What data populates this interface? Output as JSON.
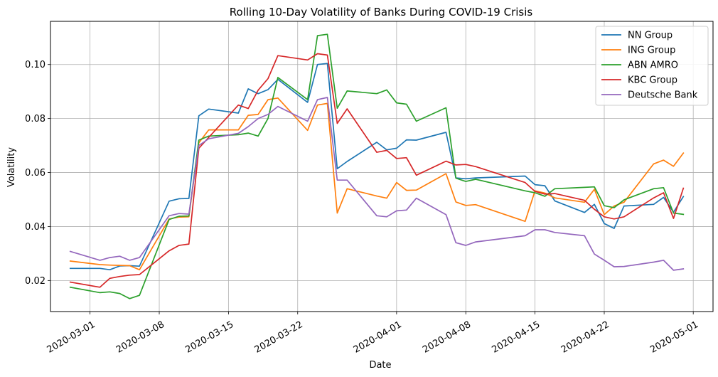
{
  "chart_data": {
    "type": "line",
    "title": "Rolling 10-Day Volatility of Banks During COVID-19 Crisis",
    "xlabel": "Date",
    "ylabel": "Volatility",
    "xlim": [
      "2020-02-26",
      "2020-05-03"
    ],
    "ylim": [
      0.0085,
      0.116
    ],
    "grid": true,
    "legend_position": "top-right",
    "x_ticks": [
      "2020-03-01",
      "2020-03-08",
      "2020-03-15",
      "2020-03-22",
      "2020-04-01",
      "2020-04-08",
      "2020-04-15",
      "2020-04-22",
      "2020-05-01"
    ],
    "y_ticks": [
      0.02,
      0.04,
      0.06,
      0.08,
      0.1
    ],
    "x": [
      "2020-02-28",
      "2020-03-02",
      "2020-03-03",
      "2020-03-04",
      "2020-03-05",
      "2020-03-06",
      "2020-03-09",
      "2020-03-10",
      "2020-03-11",
      "2020-03-12",
      "2020-03-13",
      "2020-03-16",
      "2020-03-17",
      "2020-03-18",
      "2020-03-19",
      "2020-03-20",
      "2020-03-23",
      "2020-03-24",
      "2020-03-25",
      "2020-03-26",
      "2020-03-27",
      "2020-03-30",
      "2020-03-31",
      "2020-04-01",
      "2020-04-02",
      "2020-04-03",
      "2020-04-06",
      "2020-04-07",
      "2020-04-08",
      "2020-04-09",
      "2020-04-14",
      "2020-04-15",
      "2020-04-16",
      "2020-04-17",
      "2020-04-20",
      "2020-04-21",
      "2020-04-22",
      "2020-04-23",
      "2020-04-24",
      "2020-04-27",
      "2020-04-28",
      "2020-04-29",
      "2020-04-30"
    ],
    "series": [
      {
        "name": "NN Group",
        "color": "#1f77b4",
        "values": [
          0.0245,
          0.0245,
          0.024,
          0.0254,
          0.0255,
          0.0253,
          0.0494,
          0.0503,
          0.0504,
          0.081,
          0.0835,
          0.082,
          0.091,
          0.0892,
          0.0907,
          0.0945,
          0.086,
          0.1,
          0.1004,
          0.0614,
          0.0641,
          0.0712,
          0.0684,
          0.069,
          0.0721,
          0.072,
          0.0749,
          0.058,
          0.0577,
          0.058,
          0.0587,
          0.0555,
          0.0551,
          0.0495,
          0.0452,
          0.0482,
          0.0411,
          0.0393,
          0.0476,
          0.0482,
          0.0508,
          0.0453,
          0.0511
        ]
      },
      {
        "name": "ING Group",
        "color": "#ff7f0e",
        "values": [
          0.0272,
          0.0259,
          0.0257,
          0.0256,
          0.0255,
          0.024,
          0.0428,
          0.0435,
          0.0436,
          0.071,
          0.0758,
          0.0758,
          0.0812,
          0.0815,
          0.087,
          0.0876,
          0.0756,
          0.085,
          0.0856,
          0.045,
          0.054,
          0.0513,
          0.0505,
          0.0563,
          0.0534,
          0.0535,
          0.0596,
          0.0491,
          0.0478,
          0.0481,
          0.0419,
          0.0532,
          0.0524,
          0.0506,
          0.049,
          0.0538,
          0.0444,
          0.0476,
          0.049,
          0.0632,
          0.0646,
          0.0623,
          0.0672
        ]
      },
      {
        "name": "ABN AMRO",
        "color": "#2ca02c",
        "values": [
          0.0175,
          0.0155,
          0.0158,
          0.0152,
          0.0133,
          0.0145,
          0.0426,
          0.0438,
          0.0439,
          0.072,
          0.0735,
          0.074,
          0.0746,
          0.0735,
          0.08,
          0.0952,
          0.087,
          0.1107,
          0.1112,
          0.0838,
          0.0902,
          0.0892,
          0.0906,
          0.0858,
          0.0853,
          0.079,
          0.084,
          0.0579,
          0.0567,
          0.0575,
          0.0532,
          0.0525,
          0.0512,
          0.054,
          0.0545,
          0.0547,
          0.0477,
          0.047,
          0.0499,
          0.054,
          0.0544,
          0.045,
          0.0445
        ]
      },
      {
        "name": "KBC Group",
        "color": "#d62728",
        "values": [
          0.0194,
          0.0175,
          0.0208,
          0.0215,
          0.022,
          0.0222,
          0.031,
          0.033,
          0.0335,
          0.069,
          0.073,
          0.085,
          0.0837,
          0.0905,
          0.0948,
          0.1033,
          0.1017,
          0.104,
          0.1035,
          0.0782,
          0.0836,
          0.0675,
          0.0682,
          0.0652,
          0.0655,
          0.059,
          0.0642,
          0.0628,
          0.063,
          0.0622,
          0.0563,
          0.053,
          0.052,
          0.0522,
          0.0497,
          0.0464,
          0.0436,
          0.0428,
          0.0436,
          0.0506,
          0.0525,
          0.043,
          0.0542
        ]
      },
      {
        "name": "Deutsche Bank",
        "color": "#9467bd",
        "values": [
          0.0308,
          0.0275,
          0.0285,
          0.029,
          0.0275,
          0.0285,
          0.044,
          0.0448,
          0.0446,
          0.07,
          0.0725,
          0.0745,
          0.077,
          0.08,
          0.0815,
          0.0845,
          0.079,
          0.087,
          0.0878,
          0.0572,
          0.0572,
          0.044,
          0.0436,
          0.0458,
          0.0461,
          0.0505,
          0.0444,
          0.034,
          0.033,
          0.0343,
          0.0366,
          0.0388,
          0.0388,
          0.0378,
          0.0366,
          0.0298,
          0.0275,
          0.0251,
          0.0252,
          0.0268,
          0.0275,
          0.0238,
          0.0243
        ]
      }
    ]
  }
}
